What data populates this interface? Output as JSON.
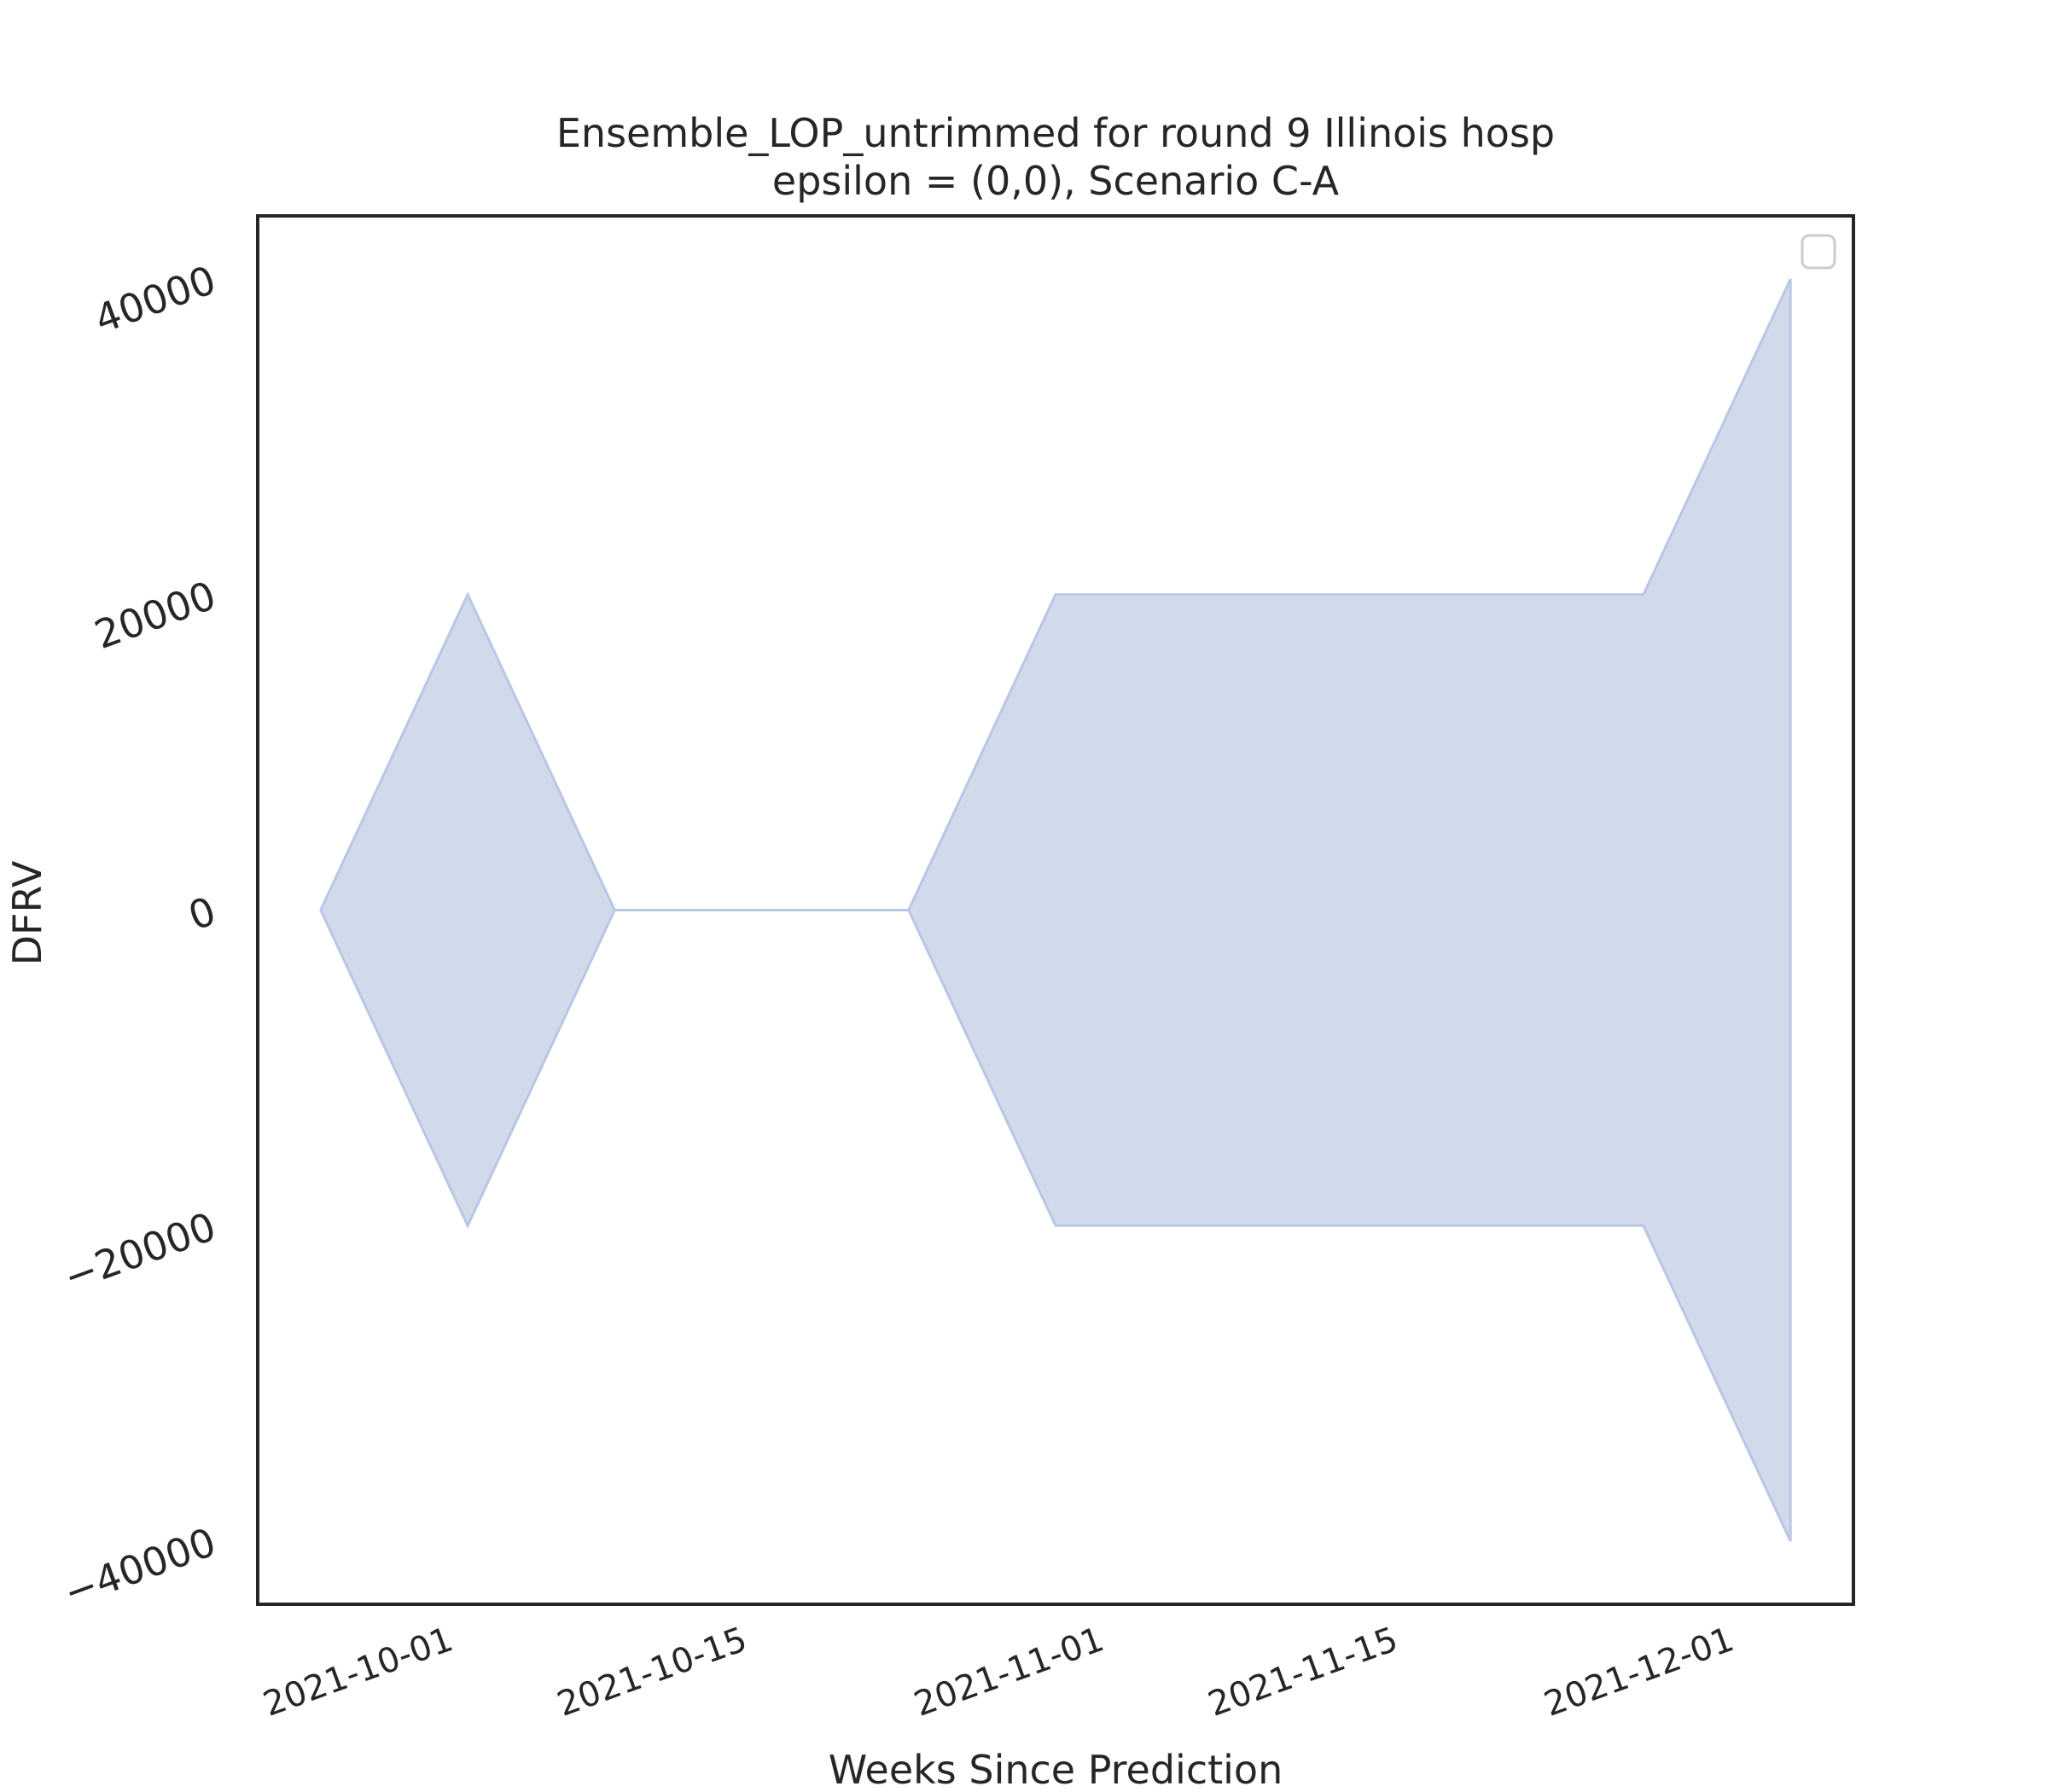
{
  "chart_data": {
    "type": "area",
    "title": "Ensemble_LOP_untrimmed for round 9 Illinois hosp",
    "subtitle": "epsilon = (0,0), Scenario C-A",
    "xlabel": "Weeks Since Prediction",
    "ylabel": "DFRV",
    "x": [
      "2021-09-25",
      "2021-10-02",
      "2021-10-09",
      "2021-10-16",
      "2021-10-23",
      "2021-10-30",
      "2021-11-06",
      "2021-11-13",
      "2021-11-20",
      "2021-11-27",
      "2021-12-04"
    ],
    "upper": [
      0,
      20000,
      0,
      0,
      0,
      20000,
      20000,
      20000,
      20000,
      20000,
      40000
    ],
    "lower": [
      0,
      -20000,
      0,
      0,
      0,
      -20000,
      -20000,
      -20000,
      -20000,
      -20000,
      -40000
    ],
    "xticks": [
      "2021-10-01",
      "2021-10-15",
      "2021-11-01",
      "2021-11-15",
      "2021-12-01"
    ],
    "yticks": [
      "−40000",
      "−20000",
      "0",
      "20000",
      "40000"
    ],
    "ytick_values": [
      -40000,
      -20000,
      0,
      20000,
      40000
    ],
    "xlim": [
      "2021-09-22",
      "2021-12-07"
    ],
    "ylim": [
      -44000,
      44000
    ],
    "fill_color": "#d1daeb",
    "edge_color": "#b8c7e3",
    "grid": false,
    "legend": "top-right (empty)"
  }
}
